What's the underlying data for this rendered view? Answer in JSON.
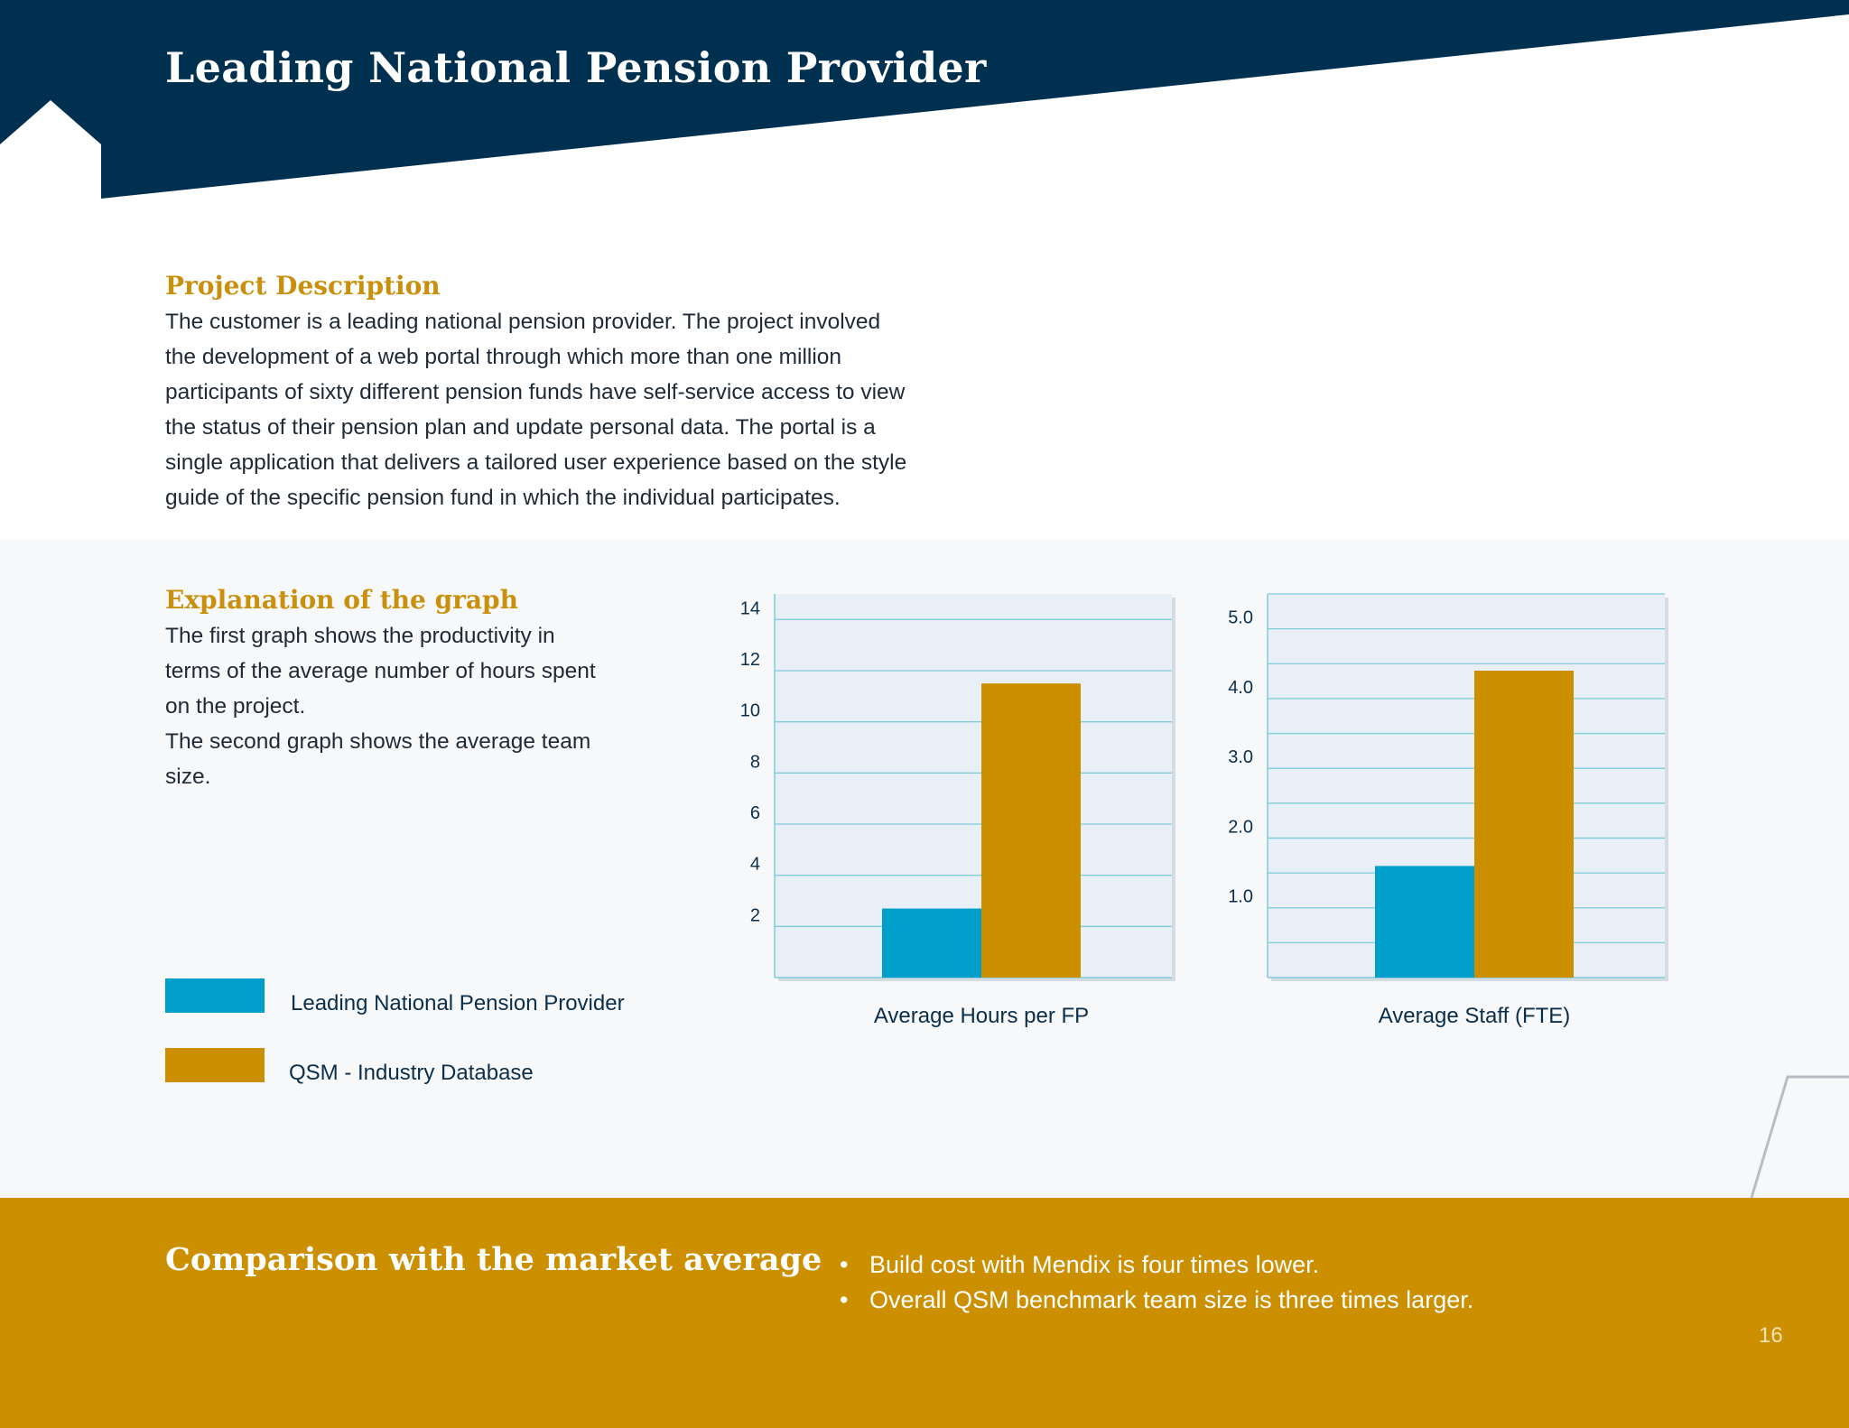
{
  "header": {
    "title": "Leading National Pension Provider",
    "colors": {
      "navy": "#00304f",
      "gold": "#c8900c"
    }
  },
  "project": {
    "heading": "Project Description",
    "lines": [
      "The customer is a leading national pension provider. The project involved",
      "the development of a web portal through which more than one million",
      "participants of sixty different pension funds have self-service access to view",
      "the status of their pension plan and update personal data. The portal is a",
      "single application that delivers a tailored user experience based on the style",
      "guide of the specific pension fund in which the individual participates."
    ]
  },
  "explanation": {
    "heading": "Explanation of the graph",
    "lines": [
      "The first graph shows the productivity in",
      "terms of the average number of hours spent",
      "on the project.",
      "The second graph shows the average team",
      "size."
    ]
  },
  "legend": [
    {
      "label": "Leading National Pension Provider",
      "color": "#009ecb"
    },
    {
      "label": "QSM - Industry Database",
      "color": "#cb8f00"
    }
  ],
  "chart_data": [
    {
      "type": "bar",
      "xlabel": "Average Hours per FP",
      "ylim": [
        0,
        15
      ],
      "yticks": [
        2,
        4,
        6,
        8,
        10,
        12,
        14
      ],
      "ytick_labels": [
        "2",
        "4",
        "6",
        "8",
        "10",
        "12",
        "14"
      ],
      "grid": true,
      "series": [
        {
          "name": "Leading National Pension Provider",
          "values": [
            2.7
          ],
          "color": "#009ecb"
        },
        {
          "name": "QSM - Industry Database",
          "values": [
            11.5
          ],
          "color": "#cb8f00"
        }
      ]
    },
    {
      "type": "bar",
      "xlabel": "Average Staff (FTE)",
      "ylim": [
        0,
        5.5
      ],
      "yticks": [
        1.0,
        2.0,
        3.0,
        4.0,
        5.0
      ],
      "ytick_labels": [
        "1.0",
        "2.0",
        "3.0",
        "4.0",
        "5.0"
      ],
      "grid": true,
      "series": [
        {
          "name": "Leading National Pension Provider",
          "values": [
            1.6
          ],
          "color": "#009ecb"
        },
        {
          "name": "QSM - Industry Database",
          "values": [
            4.4
          ],
          "color": "#cb8f00"
        }
      ]
    }
  ],
  "footer": {
    "title": "Comparison with the market average",
    "bullet_symbol": "•",
    "bullets": [
      "Build cost with Mendix is four times lower.",
      "Overall QSM benchmark team size is three times larger."
    ],
    "page_number": "16"
  }
}
